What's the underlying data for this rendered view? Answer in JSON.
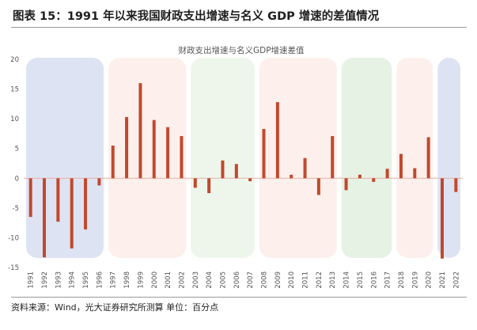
{
  "figure_title": "图表 15：1991 年以来我国财政支出增速与名义 GDP 增速的差值情况",
  "source_note": "资料来源：Wind，光大证券研究所测算    单位：百分点",
  "colors": {
    "bar": "#c0492e",
    "zero_line": "#e6b0a4",
    "period_1_bg": "#dde3f3",
    "period_2_bg": "#fdf0ec",
    "period_3_bg": "#eef6ec",
    "period_4_bg": "#fdf0ec",
    "period_5_bg": "#e6f2e3",
    "period_6_bg": "#fdf0ec",
    "period_7_bg": "#dde3f3"
  },
  "chart_data": {
    "type": "bar",
    "title": "财政支出增速与名义GDP增速差值",
    "xlabel": "",
    "ylabel": "",
    "ylim": [
      -15,
      20
    ],
    "yticks": [
      -15,
      -10,
      -5,
      0,
      5,
      10,
      15,
      20
    ],
    "grid": false,
    "categories": [
      "1991",
      "1992",
      "1993",
      "1994",
      "1995",
      "1996",
      "1997",
      "1998",
      "1999",
      "2000",
      "2001",
      "2002",
      "2003",
      "2004",
      "2005",
      "2006",
      "2007",
      "2008",
      "2009",
      "2010",
      "2011",
      "2012",
      "2013",
      "2014",
      "2015",
      "2016",
      "2017",
      "2018",
      "2019",
      "2020",
      "2021",
      "2022"
    ],
    "values": [
      -6.5,
      -13.3,
      -7.3,
      -11.8,
      -8.6,
      -1.2,
      5.5,
      10.3,
      16.0,
      9.8,
      8.6,
      7.1,
      -1.6,
      -2.5,
      3.0,
      2.4,
      -0.5,
      8.3,
      12.8,
      0.6,
      3.4,
      -2.8,
      7.1,
      -2.0,
      0.6,
      -0.6,
      1.6,
      4.1,
      1.7,
      6.9,
      -13.5,
      -2.3
    ],
    "periods": [
      {
        "from": "1991",
        "to": "1996",
        "tone": "blue"
      },
      {
        "from": "1997",
        "to": "2002",
        "tone": "pink"
      },
      {
        "from": "2003",
        "to": "2007",
        "tone": "green"
      },
      {
        "from": "2008",
        "to": "2013",
        "tone": "pink"
      },
      {
        "from": "2014",
        "to": "2017",
        "tone": "green"
      },
      {
        "from": "2018",
        "to": "2020",
        "tone": "pink"
      },
      {
        "from": "2021",
        "to": "2022",
        "tone": "blue"
      }
    ]
  }
}
